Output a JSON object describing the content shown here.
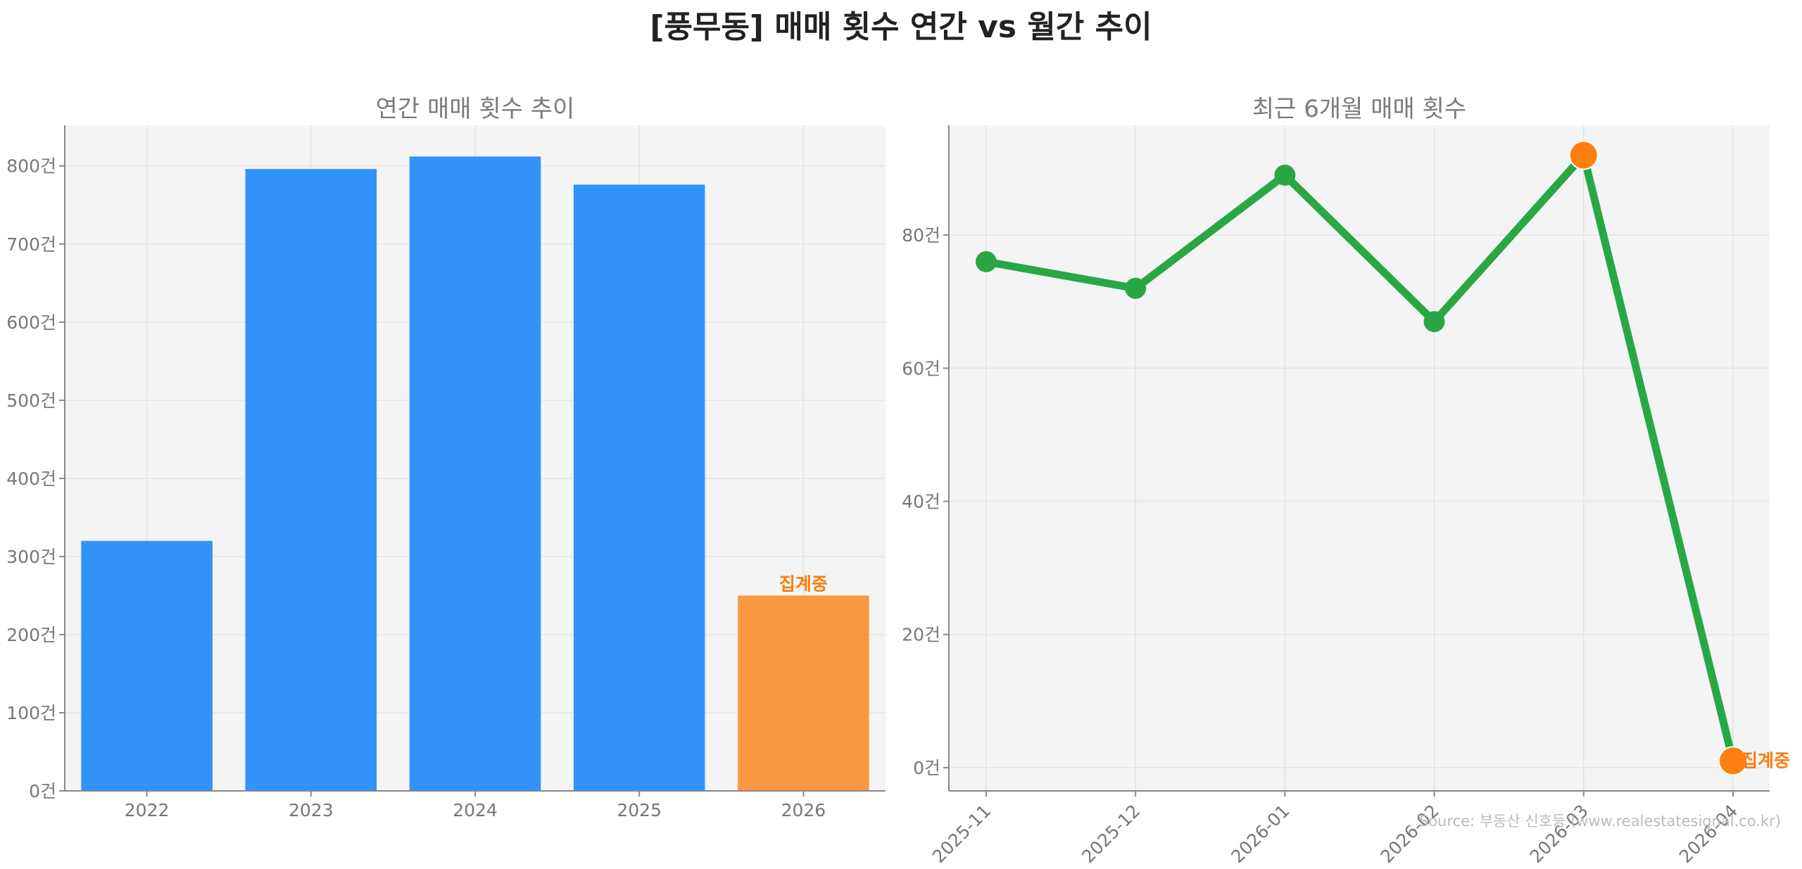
{
  "title": "[풍무동] 매매 횟수 연간 vs 월간 추이",
  "source": "Source: 부동산 신호등 (www.realestatesignal.co.kr)",
  "colors": {
    "bar": "#3193f9",
    "bar_highlight": "#f99841",
    "line": "#2aa745",
    "marker": "#2aa745",
    "marker_highlight": "#fd7f12",
    "annotation": "#f97d0f",
    "plot_bg": "#f4f4f4"
  },
  "chart_data": [
    {
      "type": "bar",
      "title": "연간 매매 횟수 추이",
      "categories": [
        "2022",
        "2023",
        "2024",
        "2025",
        "2026"
      ],
      "values": [
        320,
        796,
        812,
        776,
        250
      ],
      "highlight_index": 4,
      "annotation": {
        "index": 4,
        "text": "집계중"
      },
      "ylim": [
        0,
        852
      ],
      "yticks": [
        0,
        100,
        200,
        300,
        400,
        500,
        600,
        700,
        800
      ],
      "ytick_suffix": "건",
      "grid": true
    },
    {
      "type": "line",
      "title": "최근 6개월 매매 횟수",
      "categories": [
        "2025-11",
        "2025-12",
        "2026-01",
        "2026-02",
        "2026-03",
        "2026-04"
      ],
      "values": [
        76,
        72,
        89,
        67,
        92,
        1
      ],
      "highlight_indices": [
        4,
        5
      ],
      "annotation": {
        "index": 5,
        "text": "집계중"
      },
      "ylim": [
        -3.5,
        96.5
      ],
      "yticks": [
        0,
        20,
        40,
        60,
        80
      ],
      "ytick_suffix": "건",
      "grid": true
    }
  ]
}
